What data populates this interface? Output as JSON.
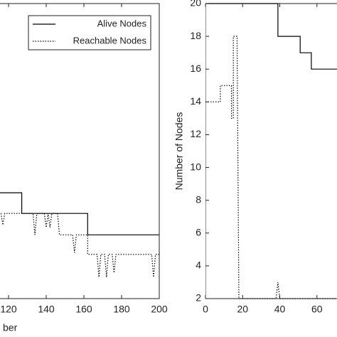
{
  "chart_data": [
    {
      "type": "line",
      "xlabel": "ber",
      "xlim": [
        0,
        200
      ],
      "ylim": [
        0,
        8
      ],
      "xticks": [
        120,
        140,
        160,
        180,
        200
      ],
      "legend": "upper right",
      "series": [
        {
          "name": "Alive Nodes",
          "color": "#000000",
          "style": "solid",
          "x": [
            112,
            127,
            127,
            162,
            162,
            200
          ],
          "values": [
            2.87,
            2.87,
            2.31,
            2.31,
            1.73,
            1.73
          ]
        },
        {
          "name": "Reachable Nodes",
          "color": "#000000",
          "style": "dotted",
          "x": [
            112,
            116,
            117,
            118,
            133,
            134,
            135,
            139,
            140,
            141,
            142,
            143,
            146,
            147,
            154,
            155,
            156,
            162,
            162,
            167,
            168,
            169,
            171,
            172,
            173,
            175,
            176,
            177,
            196,
            197,
            198,
            200
          ],
          "values": [
            2.31,
            2.31,
            2.0,
            2.31,
            2.31,
            1.73,
            2.31,
            2.31,
            1.93,
            2.31,
            1.93,
            2.31,
            2.31,
            1.73,
            1.73,
            1.25,
            1.73,
            1.73,
            1.2,
            1.2,
            0.58,
            1.2,
            1.2,
            0.58,
            1.2,
            1.2,
            0.7,
            1.2,
            1.2,
            0.58,
            1.2,
            1.2
          ]
        }
      ]
    },
    {
      "type": "line",
      "ylabel": "Number of Nodes",
      "xlim": [
        0,
        80
      ],
      "ylim": [
        2,
        20
      ],
      "xticks": [
        0,
        20,
        40,
        60
      ],
      "yticks": [
        2,
        4,
        6,
        8,
        10,
        12,
        14,
        16,
        18,
        20
      ],
      "series": [
        {
          "name": "Alive Nodes",
          "color": "#000000",
          "style": "solid",
          "x": [
            0,
            39,
            39,
            51,
            51,
            57,
            57,
            80
          ],
          "values": [
            20,
            20,
            18,
            18,
            17,
            17,
            16,
            16
          ]
        },
        {
          "name": "Reachable Nodes",
          "color": "#000000",
          "style": "dotted",
          "x": [
            0,
            8,
            8,
            14,
            14,
            15,
            15,
            17,
            18,
            38,
            39,
            40,
            80
          ],
          "values": [
            14,
            14,
            15,
            15,
            13,
            13,
            18,
            18,
            2,
            2,
            3,
            2,
            2
          ]
        }
      ]
    }
  ]
}
